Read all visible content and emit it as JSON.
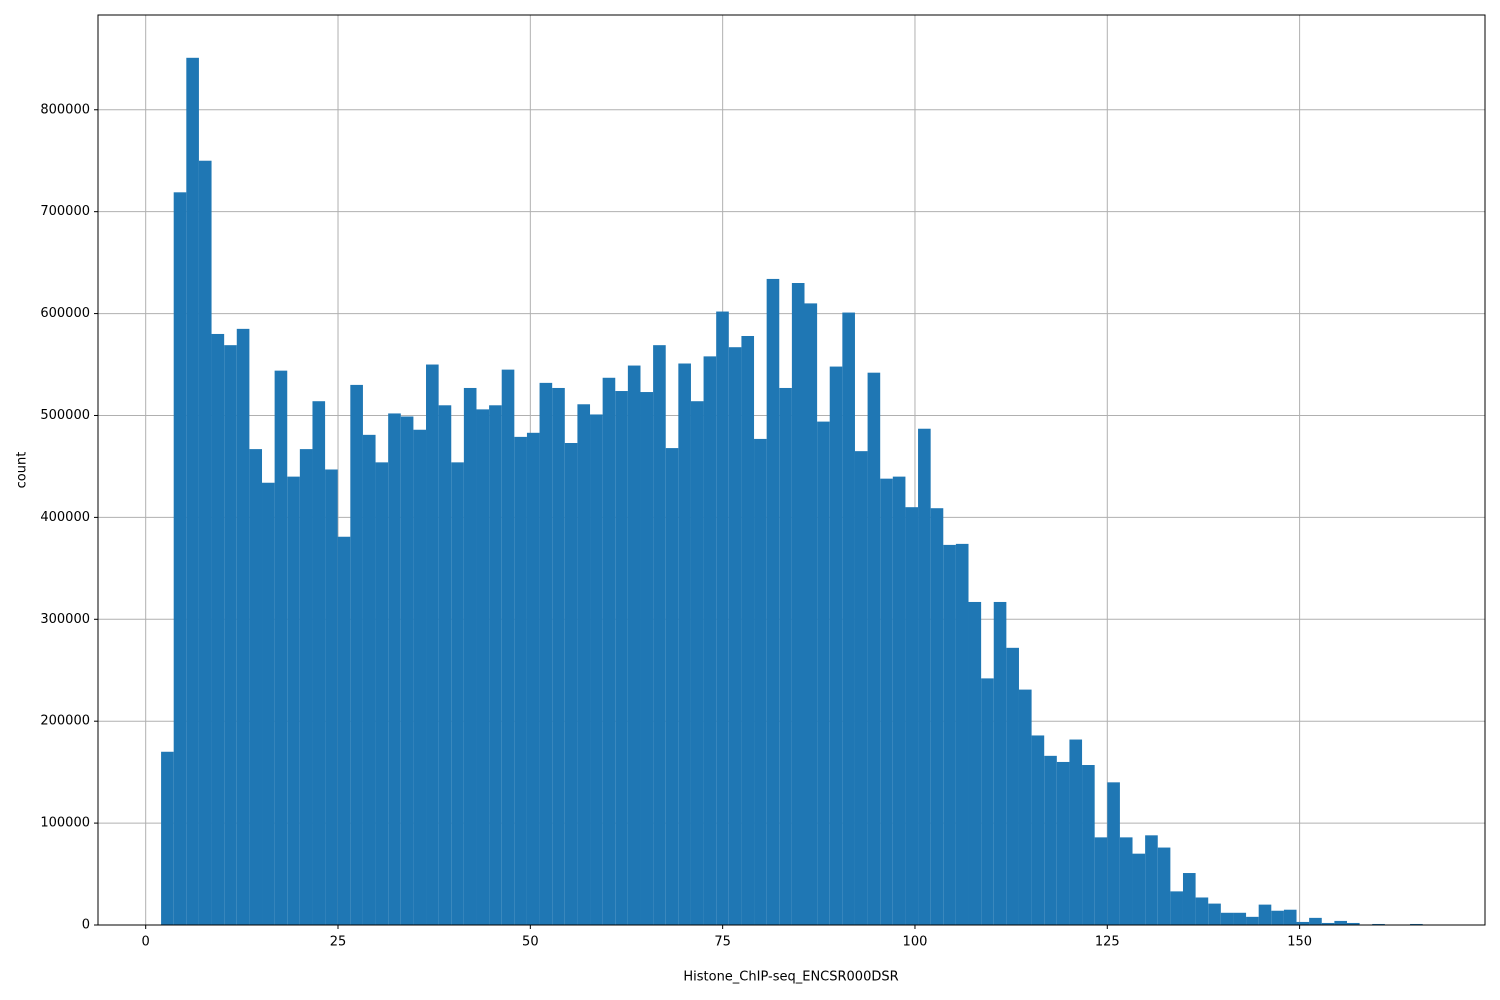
{
  "chart_data": {
    "type": "histogram",
    "x_label": "Histone_ChIP-seq_ENCSR000DSR",
    "y_label": "count",
    "color": "#1f77b4",
    "grid": true,
    "bins": [
      2,
      3.64,
      5.28,
      6.92,
      8.56,
      10.2,
      11.84,
      13.48,
      15.12,
      16.76,
      18.4,
      20.04,
      21.68,
      23.32,
      24.96,
      26.6,
      28.24,
      29.88,
      31.52,
      33.16,
      34.8,
      36.44,
      38.08,
      39.72,
      41.36,
      43,
      44.64,
      46.28,
      47.92,
      49.56,
      51.2,
      52.84,
      54.48,
      56.12,
      57.76,
      59.4,
      61.04,
      62.68,
      64.32,
      65.96,
      67.6,
      69.24,
      70.88,
      72.52,
      74.16,
      75.8,
      77.44,
      79.08,
      80.72,
      82.36,
      84,
      85.64,
      87.28,
      88.92,
      90.56,
      92.2,
      93.84,
      95.48,
      97.12,
      98.76,
      100.4,
      102.04,
      103.68,
      105.32,
      106.96,
      108.6,
      110.24,
      111.88,
      113.52,
      115.16,
      116.8,
      118.44,
      120.08,
      121.72,
      123.36,
      125,
      126.64,
      128.28,
      129.92,
      131.56,
      133.2,
      134.84,
      136.48,
      138.12,
      139.76,
      141.4,
      143.04,
      144.68,
      146.32,
      147.96,
      149.6,
      151.24,
      152.88,
      154.52,
      156.16,
      157.8,
      159.44,
      161.08,
      162.72,
      164.36,
      166
    ],
    "counts": [
      170000,
      719000,
      851000,
      750000,
      580000,
      569000,
      585000,
      467000,
      434000,
      544000,
      440000,
      467000,
      514000,
      447000,
      381000,
      530000,
      481000,
      454000,
      502000,
      499000,
      486000,
      550000,
      510000,
      454000,
      527000,
      506000,
      510000,
      545000,
      479000,
      483000,
      532000,
      527000,
      473000,
      511000,
      501000,
      537000,
      524000,
      549000,
      523000,
      569000,
      468000,
      551000,
      514000,
      558000,
      602000,
      567000,
      578000,
      477000,
      634000,
      527000,
      630000,
      610000,
      494000,
      548000,
      601000,
      465000,
      542000,
      438000,
      440000,
      410000,
      487000,
      409000,
      373000,
      374000,
      317000,
      242000,
      317000,
      272000,
      231000,
      186000,
      166000,
      160000,
      182000,
      157000,
      86000,
      140000,
      86000,
      70000,
      88000,
      76000,
      33000,
      51000,
      27000,
      21000,
      12000,
      12000,
      8000,
      20000,
      14000,
      15000,
      3000,
      7000,
      2000,
      4000,
      2000,
      0,
      1000,
      0,
      0,
      1000
    ],
    "xlim": [
      -6.2,
      174.1
    ],
    "ylim": [
      0,
      893000
    ],
    "xticks": [
      0,
      25,
      50,
      75,
      100,
      125,
      150
    ],
    "yticks": [
      0,
      100000,
      200000,
      300000,
      400000,
      500000,
      600000,
      700000,
      800000
    ]
  }
}
